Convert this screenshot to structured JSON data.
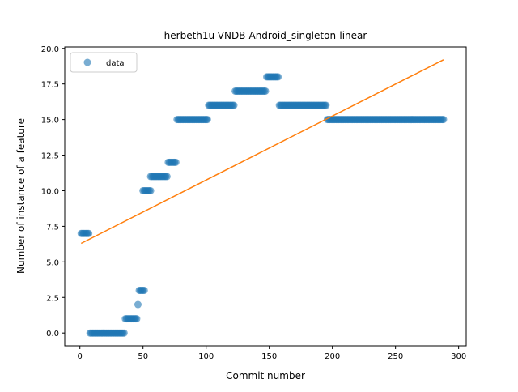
{
  "chart_data": {
    "type": "scatter",
    "title": "herbeth1u-VNDB-Android_singleton-linear",
    "xlabel": "Commit number",
    "ylabel": "Number of instance of a feature",
    "xlim": [
      -12,
      306
    ],
    "ylim": [
      -0.9,
      20.1
    ],
    "xticks": [
      "0",
      "50",
      "100",
      "150",
      "200",
      "250",
      "300"
    ],
    "xtick_values": [
      0,
      50,
      100,
      150,
      200,
      250,
      300
    ],
    "yticks": [
      "0.0",
      "2.5",
      "5.0",
      "7.5",
      "10.0",
      "12.5",
      "15.0",
      "17.5",
      "20.0"
    ],
    "ytick_values": [
      0,
      2.5,
      5,
      7.5,
      10,
      12.5,
      15,
      17.5,
      20
    ],
    "grid": false,
    "legend": {
      "position": "top-left",
      "label": "data"
    },
    "colors": {
      "data": "#1f77b4",
      "fit": "#ff7f0e"
    },
    "series": [
      {
        "name": "data",
        "kind": "scatter",
        "segments": [
          {
            "x_start": 1,
            "x_end": 7,
            "y": 7
          },
          {
            "x_start": 8,
            "x_end": 35,
            "y": 0
          },
          {
            "x_start": 36,
            "x_end": 45,
            "y": 1
          },
          {
            "x_start": 46,
            "x_end": 46,
            "y": 2
          },
          {
            "x_start": 47,
            "x_end": 51,
            "y": 3
          },
          {
            "x_start": 50,
            "x_end": 56,
            "y": 10
          },
          {
            "x_start": 56,
            "x_end": 69,
            "y": 11
          },
          {
            "x_start": 70,
            "x_end": 76,
            "y": 12
          },
          {
            "x_start": 77,
            "x_end": 101,
            "y": 15
          },
          {
            "x_start": 102,
            "x_end": 122,
            "y": 16
          },
          {
            "x_start": 123,
            "x_end": 147,
            "y": 17
          },
          {
            "x_start": 148,
            "x_end": 157,
            "y": 18
          },
          {
            "x_start": 158,
            "x_end": 195,
            "y": 16
          },
          {
            "x_start": 196,
            "x_end": 288,
            "y": 15
          }
        ]
      },
      {
        "name": "",
        "kind": "line",
        "x": [
          1,
          288
        ],
        "y": [
          6.3,
          19.2
        ]
      }
    ]
  }
}
